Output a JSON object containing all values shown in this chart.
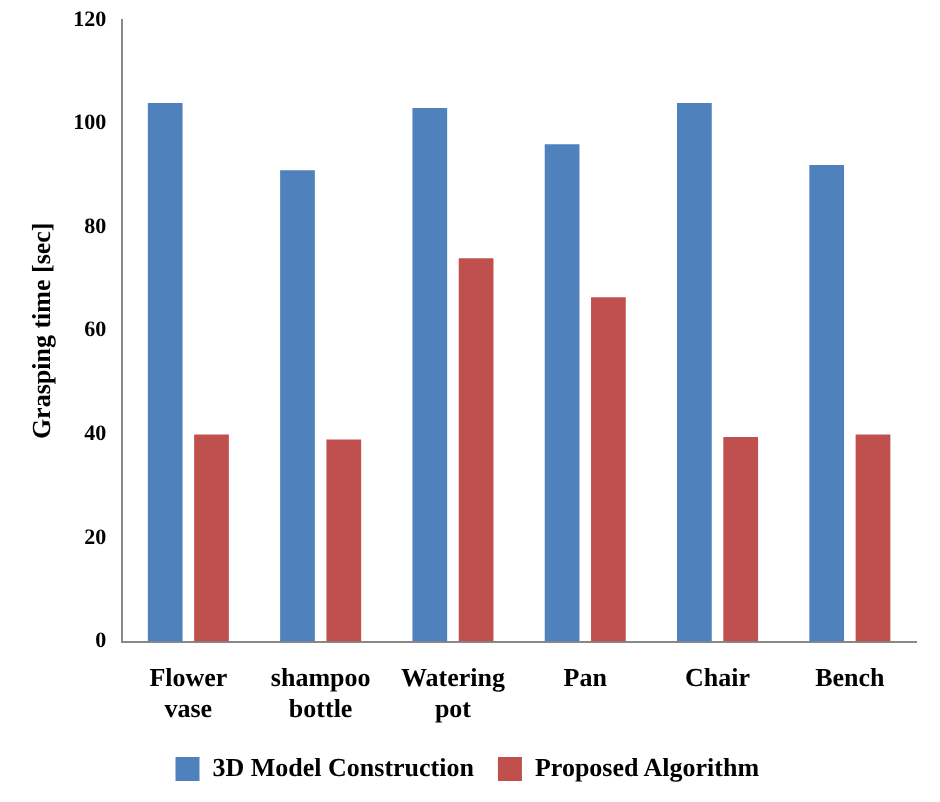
{
  "chart_data": {
    "type": "bar",
    "ylabel": "Grasping time [sec]",
    "categories": [
      "Flower vase",
      "shampoo bottle",
      "Watering pot",
      "Pan",
      "Chair",
      "Bench"
    ],
    "series": [
      {
        "name": "3D Model Construction",
        "color": "#4f81bd",
        "values": [
          104,
          91,
          103,
          96,
          104,
          92
        ]
      },
      {
        "name": "Proposed Algorithm",
        "color": "#c0504d",
        "values": [
          40,
          39,
          74,
          66.5,
          39.5,
          40
        ]
      }
    ],
    "ylim": [
      0,
      120
    ],
    "yticks": [
      0,
      20,
      40,
      60,
      80,
      100,
      120
    ],
    "grid": false,
    "legend": "bottom"
  }
}
